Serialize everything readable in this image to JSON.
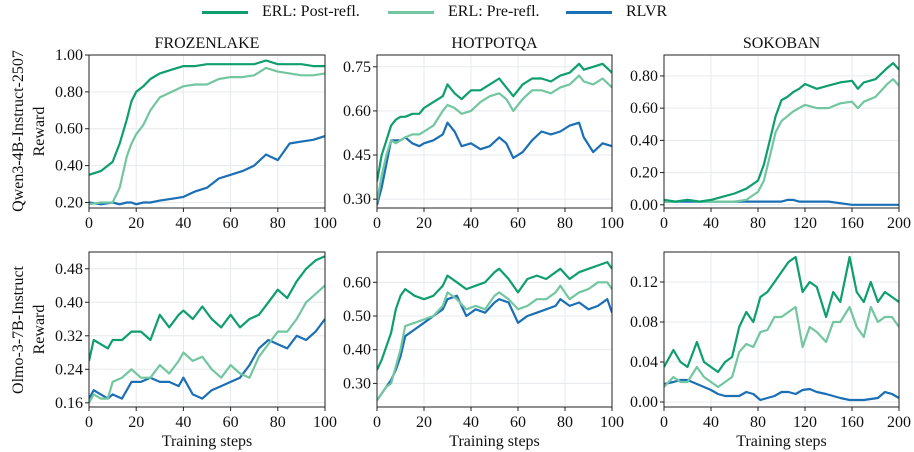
{
  "legend": [
    {
      "label": "ERL: Post-refl.",
      "color": "#0f9e6e"
    },
    {
      "label": "ERL: Pre-refl.",
      "color": "#72c6a0"
    },
    {
      "label": "RLVR",
      "color": "#1a6fb5"
    }
  ],
  "row_labels": [
    "Qwen3-4B-Instruct-2507",
    "Olmo-3-7B-Instruct"
  ],
  "chart_data": [
    {
      "type": "line",
      "title": "FROZENLAKE",
      "row": 0,
      "col": 0,
      "xlabel": "",
      "ylabel": "Reward",
      "xlim": [
        0,
        100
      ],
      "ylim": [
        0.17,
        1.0
      ],
      "xticks": [
        0,
        20,
        40,
        60,
        80,
        100
      ],
      "xtick_labels": [
        "0",
        "20",
        "40",
        "60",
        "80",
        "100"
      ],
      "yticks": [
        0.2,
        0.4,
        0.6,
        0.8,
        1.0
      ],
      "ytick_labels": [
        "0.20",
        "0.40",
        "0.60",
        "0.80",
        "1.00"
      ],
      "grid": true,
      "x": [
        0,
        5,
        10,
        13,
        16,
        18,
        20,
        23,
        26,
        30,
        35,
        40,
        45,
        50,
        55,
        60,
        65,
        70,
        75,
        80,
        85,
        90,
        95,
        100
      ],
      "series": [
        {
          "name": "ERL: Post-refl.",
          "values": [
            0.35,
            0.37,
            0.42,
            0.52,
            0.65,
            0.75,
            0.8,
            0.83,
            0.87,
            0.9,
            0.92,
            0.94,
            0.94,
            0.95,
            0.95,
            0.95,
            0.95,
            0.95,
            0.97,
            0.95,
            0.95,
            0.95,
            0.94,
            0.94
          ]
        },
        {
          "name": "ERL: Pre-refl.",
          "values": [
            0.19,
            0.2,
            0.2,
            0.28,
            0.45,
            0.52,
            0.57,
            0.62,
            0.7,
            0.77,
            0.8,
            0.83,
            0.84,
            0.84,
            0.87,
            0.88,
            0.88,
            0.89,
            0.93,
            0.91,
            0.9,
            0.89,
            0.89,
            0.9
          ]
        },
        {
          "name": "RLVR",
          "values": [
            0.2,
            0.19,
            0.2,
            0.19,
            0.2,
            0.2,
            0.19,
            0.2,
            0.2,
            0.21,
            0.22,
            0.23,
            0.26,
            0.28,
            0.33,
            0.35,
            0.37,
            0.4,
            0.46,
            0.43,
            0.52,
            0.53,
            0.54,
            0.56
          ]
        }
      ]
    },
    {
      "type": "line",
      "title": "HOTPOTQA",
      "row": 0,
      "col": 1,
      "xlabel": "",
      "ylabel": "",
      "xlim": [
        0,
        100
      ],
      "ylim": [
        0.27,
        0.79
      ],
      "xticks": [
        0,
        20,
        40,
        60,
        80,
        100
      ],
      "xtick_labels": [
        "0",
        "20",
        "40",
        "60",
        "80",
        "100"
      ],
      "yticks": [
        0.3,
        0.45,
        0.6,
        0.75
      ],
      "ytick_labels": [
        "0.30",
        "0.45",
        "0.60",
        "0.75"
      ],
      "grid": true,
      "x": [
        0,
        2,
        4,
        6,
        8,
        10,
        12,
        15,
        18,
        20,
        24,
        28,
        30,
        33,
        36,
        40,
        44,
        48,
        52,
        55,
        58,
        62,
        66,
        70,
        74,
        78,
        82,
        86,
        88,
        92,
        96,
        100
      ],
      "series": [
        {
          "name": "ERL: Post-refl.",
          "values": [
            0.36,
            0.45,
            0.5,
            0.55,
            0.57,
            0.58,
            0.58,
            0.59,
            0.59,
            0.61,
            0.63,
            0.65,
            0.69,
            0.66,
            0.64,
            0.67,
            0.67,
            0.69,
            0.71,
            0.68,
            0.65,
            0.69,
            0.71,
            0.71,
            0.7,
            0.72,
            0.73,
            0.76,
            0.74,
            0.75,
            0.76,
            0.73
          ]
        },
        {
          "name": "ERL: Pre-refl.",
          "values": [
            0.29,
            0.38,
            0.45,
            0.5,
            0.49,
            0.5,
            0.51,
            0.52,
            0.52,
            0.53,
            0.55,
            0.6,
            0.62,
            0.61,
            0.59,
            0.6,
            0.63,
            0.65,
            0.66,
            0.64,
            0.6,
            0.64,
            0.67,
            0.67,
            0.66,
            0.68,
            0.69,
            0.72,
            0.7,
            0.69,
            0.71,
            0.68
          ]
        },
        {
          "name": "RLVR",
          "values": [
            0.28,
            0.34,
            0.42,
            0.5,
            0.5,
            0.5,
            0.51,
            0.49,
            0.48,
            0.49,
            0.5,
            0.52,
            0.56,
            0.53,
            0.48,
            0.49,
            0.47,
            0.48,
            0.51,
            0.49,
            0.44,
            0.46,
            0.5,
            0.53,
            0.52,
            0.53,
            0.55,
            0.56,
            0.51,
            0.46,
            0.49,
            0.48
          ]
        }
      ]
    },
    {
      "type": "line",
      "title": "SOKOBAN",
      "row": 0,
      "col": 2,
      "xlabel": "",
      "ylabel": "",
      "xlim": [
        0,
        200
      ],
      "ylim": [
        -0.02,
        0.93
      ],
      "xticks": [
        0,
        40,
        80,
        120,
        160,
        200
      ],
      "xtick_labels": [
        "0",
        "40",
        "80",
        "120",
        "160",
        "200"
      ],
      "yticks": [
        0.0,
        0.2,
        0.4,
        0.6,
        0.8
      ],
      "ytick_labels": [
        "0.00",
        "0.20",
        "0.40",
        "0.60",
        "0.80"
      ],
      "grid": true,
      "x": [
        0,
        10,
        20,
        30,
        40,
        50,
        60,
        70,
        80,
        85,
        90,
        95,
        100,
        105,
        110,
        115,
        120,
        130,
        140,
        150,
        160,
        165,
        170,
        180,
        190,
        195,
        200
      ],
      "series": [
        {
          "name": "ERL: Post-refl.",
          "values": [
            0.03,
            0.02,
            0.03,
            0.02,
            0.03,
            0.05,
            0.07,
            0.1,
            0.15,
            0.25,
            0.4,
            0.55,
            0.65,
            0.67,
            0.7,
            0.72,
            0.75,
            0.72,
            0.74,
            0.76,
            0.77,
            0.72,
            0.76,
            0.78,
            0.85,
            0.88,
            0.84
          ]
        },
        {
          "name": "ERL: Pre-refl.",
          "values": [
            0.02,
            0.02,
            0.03,
            0.02,
            0.02,
            0.02,
            0.02,
            0.03,
            0.08,
            0.15,
            0.3,
            0.45,
            0.52,
            0.55,
            0.58,
            0.6,
            0.62,
            0.6,
            0.6,
            0.63,
            0.64,
            0.6,
            0.64,
            0.67,
            0.75,
            0.78,
            0.74
          ]
        },
        {
          "name": "RLVR",
          "values": [
            0.02,
            0.02,
            0.02,
            0.02,
            0.02,
            0.02,
            0.02,
            0.02,
            0.02,
            0.02,
            0.02,
            0.02,
            0.02,
            0.03,
            0.03,
            0.02,
            0.02,
            0.02,
            0.02,
            0.01,
            0.0,
            0.0,
            0.0,
            0.0,
            0.0,
            0.0,
            0.0
          ]
        }
      ]
    },
    {
      "type": "line",
      "title": "",
      "row": 1,
      "col": 0,
      "xlabel": "Training steps",
      "ylabel": "Reward",
      "xlim": [
        0,
        100
      ],
      "ylim": [
        0.15,
        0.52
      ],
      "xticks": [
        0,
        20,
        40,
        60,
        80,
        100
      ],
      "xtick_labels": [
        "0",
        "20",
        "40",
        "60",
        "80",
        "100"
      ],
      "yticks": [
        0.16,
        0.24,
        0.32,
        0.4,
        0.48
      ],
      "ytick_labels": [
        "0.16",
        "0.24",
        "0.32",
        "0.40",
        "0.48"
      ],
      "grid": true,
      "x": [
        0,
        2,
        5,
        8,
        10,
        14,
        18,
        22,
        26,
        30,
        34,
        38,
        40,
        44,
        48,
        52,
        56,
        60,
        64,
        68,
        72,
        76,
        80,
        84,
        88,
        92,
        96,
        100
      ],
      "series": [
        {
          "name": "ERL: Post-refl.",
          "values": [
            0.26,
            0.31,
            0.3,
            0.29,
            0.31,
            0.31,
            0.33,
            0.33,
            0.31,
            0.37,
            0.34,
            0.37,
            0.38,
            0.36,
            0.39,
            0.36,
            0.34,
            0.37,
            0.34,
            0.36,
            0.37,
            0.4,
            0.43,
            0.41,
            0.45,
            0.48,
            0.5,
            0.51
          ]
        },
        {
          "name": "ERL: Pre-refl.",
          "values": [
            0.16,
            0.18,
            0.17,
            0.17,
            0.21,
            0.22,
            0.24,
            0.22,
            0.22,
            0.25,
            0.23,
            0.26,
            0.28,
            0.26,
            0.27,
            0.24,
            0.22,
            0.25,
            0.23,
            0.22,
            0.27,
            0.3,
            0.33,
            0.33,
            0.36,
            0.4,
            0.42,
            0.44
          ]
        },
        {
          "name": "RLVR",
          "values": [
            0.17,
            0.19,
            0.18,
            0.17,
            0.18,
            0.17,
            0.21,
            0.21,
            0.22,
            0.21,
            0.21,
            0.2,
            0.22,
            0.18,
            0.17,
            0.19,
            0.2,
            0.21,
            0.22,
            0.25,
            0.29,
            0.31,
            0.3,
            0.29,
            0.32,
            0.31,
            0.33,
            0.36
          ]
        }
      ]
    },
    {
      "type": "line",
      "title": "",
      "row": 1,
      "col": 1,
      "xlabel": "Training steps",
      "ylabel": "",
      "xlim": [
        0,
        100
      ],
      "ylim": [
        0.23,
        0.69
      ],
      "xticks": [
        0,
        20,
        40,
        60,
        80,
        100
      ],
      "xtick_labels": [
        "0",
        "20",
        "40",
        "60",
        "80",
        "100"
      ],
      "yticks": [
        0.3,
        0.4,
        0.5,
        0.6
      ],
      "ytick_labels": [
        "0.30",
        "0.40",
        "0.50",
        "0.60"
      ],
      "grid": true,
      "x": [
        0,
        2,
        4,
        6,
        8,
        10,
        12,
        16,
        20,
        24,
        28,
        30,
        34,
        38,
        42,
        46,
        50,
        52,
        56,
        60,
        64,
        68,
        72,
        76,
        78,
        82,
        86,
        90,
        94,
        98,
        100
      ],
      "series": [
        {
          "name": "ERL: Post-refl.",
          "values": [
            0.34,
            0.37,
            0.41,
            0.45,
            0.52,
            0.56,
            0.58,
            0.56,
            0.55,
            0.56,
            0.59,
            0.62,
            0.6,
            0.58,
            0.59,
            0.6,
            0.63,
            0.64,
            0.61,
            0.57,
            0.61,
            0.62,
            0.61,
            0.63,
            0.64,
            0.61,
            0.63,
            0.64,
            0.65,
            0.66,
            0.64
          ]
        },
        {
          "name": "ERL: Pre-refl.",
          "values": [
            0.25,
            0.27,
            0.29,
            0.3,
            0.35,
            0.4,
            0.47,
            0.48,
            0.49,
            0.5,
            0.53,
            0.57,
            0.55,
            0.52,
            0.53,
            0.52,
            0.56,
            0.57,
            0.55,
            0.52,
            0.53,
            0.55,
            0.55,
            0.57,
            0.59,
            0.55,
            0.57,
            0.58,
            0.6,
            0.6,
            0.58
          ]
        },
        {
          "name": "RLVR",
          "values": [
            0.25,
            0.27,
            0.29,
            0.31,
            0.34,
            0.38,
            0.44,
            0.46,
            0.48,
            0.5,
            0.52,
            0.55,
            0.56,
            0.5,
            0.52,
            0.51,
            0.54,
            0.55,
            0.54,
            0.48,
            0.5,
            0.51,
            0.52,
            0.53,
            0.55,
            0.53,
            0.54,
            0.52,
            0.53,
            0.55,
            0.51
          ]
        }
      ]
    },
    {
      "type": "line",
      "title": "",
      "row": 1,
      "col": 2,
      "xlabel": "Training steps",
      "ylabel": "",
      "xlim": [
        0,
        200
      ],
      "ylim": [
        -0.005,
        0.15
      ],
      "xticks": [
        0,
        40,
        80,
        120,
        160,
        200
      ],
      "xtick_labels": [
        "0",
        "40",
        "80",
        "120",
        "160",
        "200"
      ],
      "yticks": [
        0.0,
        0.04,
        0.08,
        0.12
      ],
      "ytick_labels": [
        "0.00",
        "0.04",
        "0.08",
        "0.12"
      ],
      "grid": true,
      "x": [
        0,
        8,
        14,
        20,
        28,
        34,
        40,
        46,
        52,
        58,
        64,
        70,
        76,
        82,
        88,
        94,
        100,
        106,
        112,
        118,
        124,
        130,
        138,
        144,
        150,
        158,
        164,
        170,
        176,
        182,
        188,
        194,
        200
      ],
      "series": [
        {
          "name": "ERL: Post-refl.",
          "values": [
            0.035,
            0.052,
            0.04,
            0.035,
            0.06,
            0.04,
            0.035,
            0.03,
            0.04,
            0.045,
            0.075,
            0.09,
            0.08,
            0.105,
            0.11,
            0.12,
            0.13,
            0.14,
            0.145,
            0.11,
            0.12,
            0.115,
            0.085,
            0.11,
            0.1,
            0.145,
            0.11,
            0.1,
            0.12,
            0.1,
            0.11,
            0.105,
            0.1
          ]
        },
        {
          "name": "ERL: Pre-refl.",
          "values": [
            0.015,
            0.025,
            0.02,
            0.02,
            0.035,
            0.025,
            0.02,
            0.015,
            0.02,
            0.025,
            0.05,
            0.058,
            0.055,
            0.07,
            0.072,
            0.085,
            0.085,
            0.09,
            0.095,
            0.055,
            0.075,
            0.07,
            0.06,
            0.08,
            0.08,
            0.095,
            0.075,
            0.065,
            0.095,
            0.08,
            0.085,
            0.085,
            0.075
          ]
        },
        {
          "name": "RLVR",
          "values": [
            0.018,
            0.02,
            0.022,
            0.022,
            0.018,
            0.015,
            0.012,
            0.008,
            0.006,
            0.006,
            0.006,
            0.01,
            0.008,
            0.002,
            0.004,
            0.006,
            0.01,
            0.01,
            0.008,
            0.012,
            0.013,
            0.01,
            0.008,
            0.006,
            0.004,
            0.002,
            0.002,
            0.002,
            0.003,
            0.004,
            0.01,
            0.008,
            0.004
          ]
        }
      ]
    }
  ]
}
